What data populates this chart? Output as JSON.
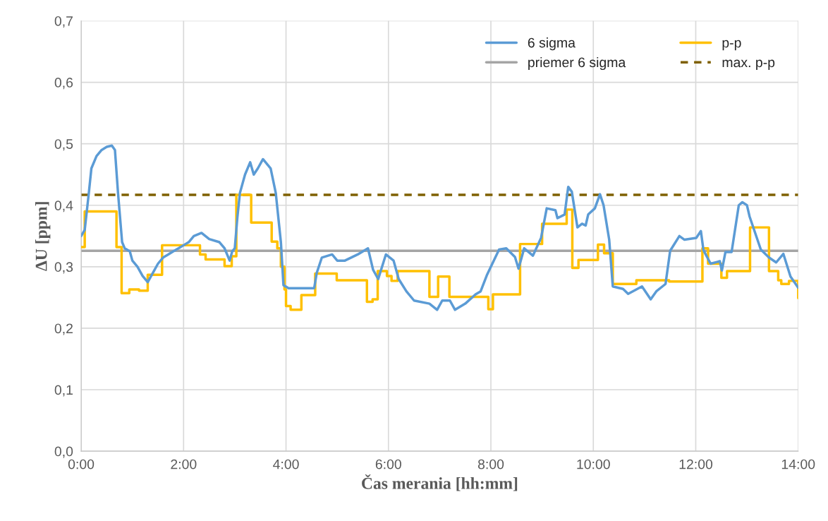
{
  "chart_data": {
    "type": "line",
    "xlabel": "Čas merania [hh:mm]",
    "ylabel": "ΔU [ppm]",
    "xlim": [
      0,
      14
    ],
    "xticks": [
      {
        "value": 0,
        "label": "0:00"
      },
      {
        "value": 2,
        "label": "2:00"
      },
      {
        "value": 4,
        "label": "4:00"
      },
      {
        "value": 6,
        "label": "6:00"
      },
      {
        "value": 8,
        "label": "8:00"
      },
      {
        "value": 10,
        "label": "10:00"
      },
      {
        "value": 12,
        "label": "12:00"
      },
      {
        "value": 14,
        "label": "14:00"
      }
    ],
    "ylim": [
      0,
      0.7
    ],
    "yticks": [
      {
        "value": 0,
        "label": "0,0"
      },
      {
        "value": 0.1,
        "label": "0,1"
      },
      {
        "value": 0.2,
        "label": "0,2"
      },
      {
        "value": 0.3,
        "label": "0,3"
      },
      {
        "value": 0.4,
        "label": "0,4"
      },
      {
        "value": 0.5,
        "label": "0,5"
      },
      {
        "value": 0.6,
        "label": "0,6"
      },
      {
        "value": 0.7,
        "label": "0,7"
      }
    ],
    "grid": true,
    "legend": "top right",
    "series": [
      {
        "name": "6 sigma",
        "color": "#5b9bd5",
        "x": [
          0,
          0.07,
          0.15,
          0.2,
          0.3,
          0.4,
          0.5,
          0.6,
          0.66,
          0.72,
          0.8,
          0.85,
          0.95,
          1.0,
          1.1,
          1.2,
          1.3,
          1.4,
          1.5,
          1.6,
          1.7,
          1.8,
          2.0,
          2.1,
          2.2,
          2.35,
          2.5,
          2.7,
          2.8,
          2.9,
          2.95,
          3.0,
          3.05,
          3.1,
          3.2,
          3.3,
          3.37,
          3.45,
          3.55,
          3.7,
          3.8,
          3.9,
          3.95,
          4.05,
          4.3,
          4.55,
          4.6,
          4.7,
          4.9,
          5.0,
          5.15,
          5.4,
          5.6,
          5.7,
          5.8,
          5.95,
          6.1,
          6.2,
          6.35,
          6.5,
          6.8,
          6.95,
          7.05,
          7.2,
          7.3,
          7.5,
          7.7,
          7.8,
          7.92,
          8.16,
          8.3,
          8.47,
          8.54,
          8.65,
          8.82,
          8.98,
          9.09,
          9.26,
          9.3,
          9.44,
          9.51,
          9.58,
          9.69,
          9.78,
          9.85,
          9.9,
          10.03,
          10.13,
          10.2,
          10.31,
          10.38,
          10.58,
          10.68,
          10.95,
          11.12,
          11.23,
          11.41,
          11.5,
          11.68,
          11.78,
          12.01,
          12.1,
          12.15,
          12.29,
          12.47,
          12.51,
          12.58,
          12.7,
          12.84,
          12.91,
          13.0,
          13.05,
          13.16,
          13.27,
          13.43,
          13.57,
          13.71,
          13.85,
          14.0
        ],
        "values": [
          0.35,
          0.36,
          0.42,
          0.46,
          0.48,
          0.49,
          0.495,
          0.497,
          0.49,
          0.42,
          0.34,
          0.33,
          0.325,
          0.31,
          0.3,
          0.285,
          0.275,
          0.29,
          0.305,
          0.315,
          0.32,
          0.325,
          0.335,
          0.34,
          0.35,
          0.355,
          0.345,
          0.34,
          0.33,
          0.31,
          0.325,
          0.33,
          0.38,
          0.42,
          0.45,
          0.47,
          0.45,
          0.46,
          0.475,
          0.46,
          0.42,
          0.34,
          0.27,
          0.265,
          0.265,
          0.265,
          0.29,
          0.315,
          0.32,
          0.31,
          0.31,
          0.32,
          0.33,
          0.295,
          0.28,
          0.32,
          0.31,
          0.28,
          0.26,
          0.245,
          0.24,
          0.23,
          0.245,
          0.245,
          0.23,
          0.24,
          0.255,
          0.26,
          0.286,
          0.328,
          0.33,
          0.316,
          0.297,
          0.33,
          0.318,
          0.347,
          0.395,
          0.392,
          0.379,
          0.385,
          0.43,
          0.422,
          0.364,
          0.37,
          0.367,
          0.385,
          0.395,
          0.418,
          0.4,
          0.344,
          0.268,
          0.264,
          0.256,
          0.268,
          0.247,
          0.26,
          0.272,
          0.326,
          0.35,
          0.344,
          0.347,
          0.358,
          0.327,
          0.305,
          0.309,
          0.294,
          0.324,
          0.324,
          0.4,
          0.405,
          0.4,
          0.382,
          0.355,
          0.328,
          0.315,
          0.307,
          0.321,
          0.284,
          0.266
        ]
      },
      {
        "name": "p-p",
        "color": "#ffc000",
        "type": "step",
        "x": [
          0,
          0.07,
          0.69,
          0.79,
          0.94,
          1.13,
          1.3,
          1.58,
          2.32,
          2.43,
          2.8,
          2.94,
          3.03,
          3.32,
          3.72,
          3.83,
          3.9,
          3.97,
          4.0,
          4.09,
          4.3,
          4.57,
          4.99,
          5.58,
          5.69,
          5.79,
          5.97,
          6.06,
          6.18,
          6.8,
          6.97,
          7.19,
          7.95,
          8.04,
          8.57,
          9.0,
          9.48,
          9.59,
          9.71,
          10.09,
          10.21,
          10.38,
          10.84,
          11.48,
          12.13,
          12.24,
          12.5,
          12.61,
          13.06,
          13.43,
          13.61,
          13.67,
          13.82,
          14.0
        ],
        "values": [
          0.332,
          0.39,
          0.332,
          0.257,
          0.263,
          0.261,
          0.287,
          0.335,
          0.32,
          0.312,
          0.301,
          0.317,
          0.417,
          0.372,
          0.341,
          0.33,
          0.3,
          0.263,
          0.236,
          0.23,
          0.254,
          0.289,
          0.278,
          0.243,
          0.247,
          0.293,
          0.285,
          0.277,
          0.293,
          0.251,
          0.284,
          0.251,
          0.231,
          0.255,
          0.337,
          0.37,
          0.393,
          0.298,
          0.311,
          0.336,
          0.322,
          0.272,
          0.278,
          0.276,
          0.33,
          0.305,
          0.282,
          0.293,
          0.364,
          0.293,
          0.278,
          0.272,
          0.277,
          0.249
        ]
      }
    ],
    "ref_lines": [
      {
        "axis": "y",
        "value": 0.326,
        "label": "priemer 6 sigma",
        "color": "#a5a5a5",
        "line_style": "solid"
      },
      {
        "axis": "y",
        "value": 0.417,
        "label": "max. p-p",
        "color": "#7f6000",
        "line_style": "dashed"
      }
    ]
  }
}
